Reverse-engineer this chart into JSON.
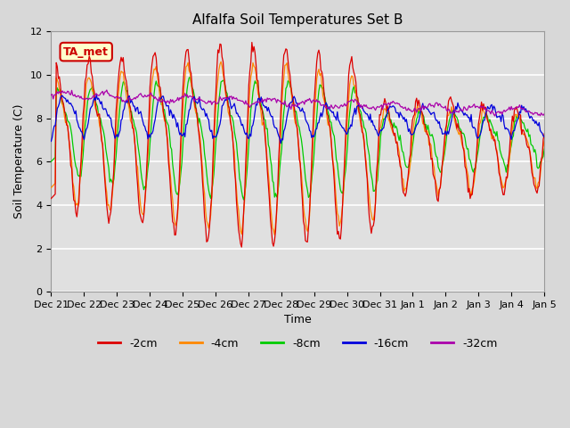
{
  "title": "Alfalfa Soil Temperatures Set B",
  "xlabel": "Time",
  "ylabel": "Soil Temperature (C)",
  "ylim": [
    0,
    12
  ],
  "bg_color": "#d8d8d8",
  "plot_bg_color": "#e0e0e0",
  "annotation_text": "TA_met",
  "annotation_bg": "#ffffcc",
  "annotation_border": "#cc0000",
  "annotation_text_color": "#cc0000",
  "colors": {
    "-2cm": "#dd0000",
    "-4cm": "#ff8800",
    "-8cm": "#00cc00",
    "-16cm": "#0000dd",
    "-32cm": "#aa00aa"
  },
  "legend_labels": [
    "-2cm",
    "-4cm",
    "-8cm",
    "-16cm",
    "-32cm"
  ],
  "tick_labels": [
    "Dec 21",
    "Dec 22",
    "Dec 23",
    "Dec 24",
    "Dec 25",
    "Dec 26",
    "Dec 27",
    "Dec 28",
    "Dec 29",
    "Dec 30",
    "Dec 31",
    "Jan 1",
    "Jan 2",
    "Jan 3",
    "Jan 4",
    "Jan 5"
  ],
  "num_points": 480
}
